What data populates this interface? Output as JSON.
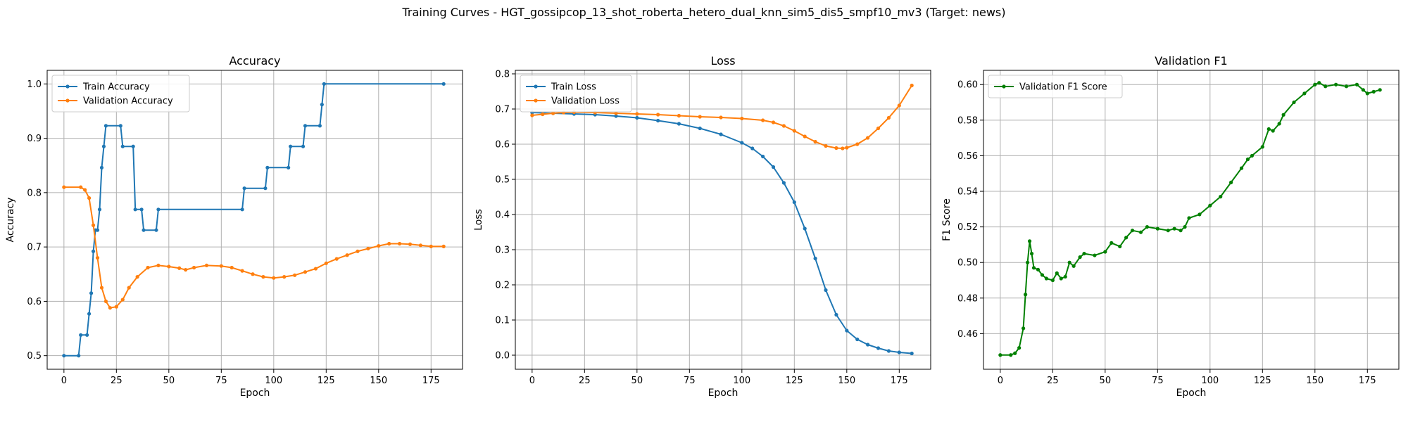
{
  "figure": {
    "suptitle": "Training Curves - HGT_gossipcop_13_shot_roberta_hetero_dual_knn_sim5_dis5_smpf10_mv3 (Target: news)"
  },
  "colors": {
    "train": "#1f77b4",
    "validation": "#ff7f0e",
    "f1": "#008000",
    "grid": "#b0b0b0"
  },
  "chart_data": [
    {
      "type": "line",
      "title": "Accuracy",
      "xlabel": "Epoch",
      "ylabel": "Accuracy",
      "xlim": [
        -8,
        190
      ],
      "ylim": [
        0.475,
        1.025
      ],
      "xticks": [
        0,
        25,
        50,
        75,
        100,
        125,
        150,
        175
      ],
      "yticks": [
        0.5,
        0.6,
        0.7,
        0.8,
        0.9,
        1.0
      ],
      "ytick_labels": [
        "0.5",
        "0.6",
        "0.7",
        "0.8",
        "0.9",
        "1.0"
      ],
      "grid": true,
      "legend": "upper-left",
      "series": [
        {
          "name": "Train Accuracy",
          "color": "#1f77b4",
          "points": [
            [
              0,
              0.5
            ],
            [
              7,
              0.5
            ],
            [
              8,
              0.538
            ],
            [
              11,
              0.538
            ],
            [
              12,
              0.577
            ],
            [
              13,
              0.615
            ],
            [
              14,
              0.692
            ],
            [
              15,
              0.731
            ],
            [
              16,
              0.731
            ],
            [
              17,
              0.769
            ],
            [
              18,
              0.846
            ],
            [
              19,
              0.885
            ],
            [
              20,
              0.923
            ],
            [
              27,
              0.923
            ],
            [
              28,
              0.885
            ],
            [
              33,
              0.885
            ],
            [
              34,
              0.769
            ],
            [
              37,
              0.769
            ],
            [
              38,
              0.731
            ],
            [
              44,
              0.731
            ],
            [
              45,
              0.769
            ],
            [
              85,
              0.769
            ],
            [
              86,
              0.808
            ],
            [
              96,
              0.808
            ],
            [
              97,
              0.846
            ],
            [
              107,
              0.846
            ],
            [
              108,
              0.885
            ],
            [
              114,
              0.885
            ],
            [
              115,
              0.923
            ],
            [
              122,
              0.923
            ],
            [
              123,
              0.962
            ],
            [
              124,
              1.0
            ],
            [
              181,
              1.0
            ]
          ]
        },
        {
          "name": "Validation Accuracy",
          "color": "#ff7f0e",
          "points": [
            [
              0,
              0.81
            ],
            [
              8,
              0.81
            ],
            [
              10,
              0.805
            ],
            [
              12,
              0.79
            ],
            [
              14,
              0.74
            ],
            [
              16,
              0.68
            ],
            [
              18,
              0.625
            ],
            [
              20,
              0.6
            ],
            [
              22,
              0.588
            ],
            [
              25,
              0.59
            ],
            [
              28,
              0.603
            ],
            [
              31,
              0.625
            ],
            [
              35,
              0.645
            ],
            [
              40,
              0.662
            ],
            [
              45,
              0.666
            ],
            [
              50,
              0.664
            ],
            [
              55,
              0.661
            ],
            [
              58,
              0.658
            ],
            [
              62,
              0.662
            ],
            [
              68,
              0.666
            ],
            [
              75,
              0.665
            ],
            [
              80,
              0.662
            ],
            [
              85,
              0.656
            ],
            [
              90,
              0.65
            ],
            [
              95,
              0.645
            ],
            [
              100,
              0.643
            ],
            [
              105,
              0.645
            ],
            [
              110,
              0.648
            ],
            [
              115,
              0.654
            ],
            [
              120,
              0.66
            ],
            [
              125,
              0.67
            ],
            [
              130,
              0.678
            ],
            [
              135,
              0.685
            ],
            [
              140,
              0.692
            ],
            [
              145,
              0.697
            ],
            [
              150,
              0.702
            ],
            [
              155,
              0.706
            ],
            [
              160,
              0.706
            ],
            [
              165,
              0.705
            ],
            [
              170,
              0.703
            ],
            [
              175,
              0.701
            ],
            [
              181,
              0.701
            ]
          ]
        }
      ]
    },
    {
      "type": "line",
      "title": "Loss",
      "xlabel": "Epoch",
      "ylabel": "Loss",
      "xlim": [
        -8,
        190
      ],
      "ylim": [
        -0.04,
        0.81
      ],
      "xticks": [
        0,
        25,
        50,
        75,
        100,
        125,
        150,
        175
      ],
      "yticks": [
        0.0,
        0.1,
        0.2,
        0.3,
        0.4,
        0.5,
        0.6,
        0.7,
        0.8
      ],
      "ytick_labels": [
        "0.0",
        "0.1",
        "0.2",
        "0.3",
        "0.4",
        "0.5",
        "0.6",
        "0.7",
        "0.8"
      ],
      "grid": true,
      "legend": "upper-left",
      "series": [
        {
          "name": "Train Loss",
          "color": "#1f77b4",
          "points": [
            [
              0,
              0.69
            ],
            [
              10,
              0.688
            ],
            [
              20,
              0.686
            ],
            [
              30,
              0.684
            ],
            [
              40,
              0.68
            ],
            [
              50,
              0.675
            ],
            [
              60,
              0.667
            ],
            [
              70,
              0.658
            ],
            [
              80,
              0.645
            ],
            [
              90,
              0.628
            ],
            [
              100,
              0.604
            ],
            [
              105,
              0.588
            ],
            [
              110,
              0.565
            ],
            [
              115,
              0.535
            ],
            [
              120,
              0.49
            ],
            [
              125,
              0.435
            ],
            [
              130,
              0.36
            ],
            [
              135,
              0.275
            ],
            [
              140,
              0.185
            ],
            [
              145,
              0.115
            ],
            [
              150,
              0.07
            ],
            [
              155,
              0.045
            ],
            [
              160,
              0.03
            ],
            [
              165,
              0.02
            ],
            [
              170,
              0.012
            ],
            [
              175,
              0.008
            ],
            [
              181,
              0.005
            ]
          ]
        },
        {
          "name": "Validation Loss",
          "color": "#ff7f0e",
          "points": [
            [
              0,
              0.682
            ],
            [
              5,
              0.685
            ],
            [
              10,
              0.688
            ],
            [
              15,
              0.69
            ],
            [
              20,
              0.691
            ],
            [
              30,
              0.69
            ],
            [
              40,
              0.688
            ],
            [
              50,
              0.686
            ],
            [
              60,
              0.684
            ],
            [
              70,
              0.681
            ],
            [
              80,
              0.678
            ],
            [
              90,
              0.676
            ],
            [
              100,
              0.673
            ],
            [
              110,
              0.668
            ],
            [
              115,
              0.662
            ],
            [
              120,
              0.652
            ],
            [
              125,
              0.638
            ],
            [
              130,
              0.622
            ],
            [
              135,
              0.607
            ],
            [
              140,
              0.595
            ],
            [
              145,
              0.589
            ],
            [
              148,
              0.588
            ],
            [
              150,
              0.59
            ],
            [
              155,
              0.6
            ],
            [
              160,
              0.618
            ],
            [
              165,
              0.645
            ],
            [
              170,
              0.675
            ],
            [
              175,
              0.71
            ],
            [
              181,
              0.767
            ]
          ]
        }
      ]
    },
    {
      "type": "line",
      "title": "Validation F1",
      "xlabel": "Epoch",
      "ylabel": "F1 Score",
      "xlim": [
        -8,
        190
      ],
      "ylim": [
        0.44,
        0.608
      ],
      "xticks": [
        0,
        25,
        50,
        75,
        100,
        125,
        150,
        175
      ],
      "yticks": [
        0.46,
        0.48,
        0.5,
        0.52,
        0.54,
        0.56,
        0.58,
        0.6
      ],
      "ytick_labels": [
        "0.46",
        "0.48",
        "0.50",
        "0.52",
        "0.54",
        "0.56",
        "0.58",
        "0.60"
      ],
      "grid": true,
      "legend": "upper-left",
      "series": [
        {
          "name": "Validation F1 Score",
          "color": "#008000",
          "points": [
            [
              0,
              0.448
            ],
            [
              5,
              0.448
            ],
            [
              7,
              0.449
            ],
            [
              9,
              0.452
            ],
            [
              11,
              0.463
            ],
            [
              12,
              0.482
            ],
            [
              13,
              0.5
            ],
            [
              14,
              0.512
            ],
            [
              15,
              0.505
            ],
            [
              16,
              0.497
            ],
            [
              18,
              0.496
            ],
            [
              20,
              0.493
            ],
            [
              22,
              0.491
            ],
            [
              25,
              0.49
            ],
            [
              27,
              0.494
            ],
            [
              29,
              0.491
            ],
            [
              31,
              0.492
            ],
            [
              33,
              0.5
            ],
            [
              35,
              0.498
            ],
            [
              38,
              0.503
            ],
            [
              40,
              0.505
            ],
            [
              45,
              0.504
            ],
            [
              50,
              0.506
            ],
            [
              53,
              0.511
            ],
            [
              57,
              0.509
            ],
            [
              60,
              0.514
            ],
            [
              63,
              0.518
            ],
            [
              67,
              0.517
            ],
            [
              70,
              0.52
            ],
            [
              75,
              0.519
            ],
            [
              80,
              0.518
            ],
            [
              83,
              0.519
            ],
            [
              86,
              0.518
            ],
            [
              88,
              0.52
            ],
            [
              90,
              0.525
            ],
            [
              95,
              0.527
            ],
            [
              100,
              0.532
            ],
            [
              105,
              0.537
            ],
            [
              110,
              0.545
            ],
            [
              115,
              0.553
            ],
            [
              118,
              0.558
            ],
            [
              120,
              0.56
            ],
            [
              125,
              0.565
            ],
            [
              128,
              0.575
            ],
            [
              130,
              0.574
            ],
            [
              133,
              0.578
            ],
            [
              135,
              0.583
            ],
            [
              140,
              0.59
            ],
            [
              145,
              0.595
            ],
            [
              150,
              0.6
            ],
            [
              152,
              0.601
            ],
            [
              155,
              0.599
            ],
            [
              160,
              0.6
            ],
            [
              165,
              0.599
            ],
            [
              170,
              0.6
            ],
            [
              173,
              0.597
            ],
            [
              175,
              0.595
            ],
            [
              178,
              0.596
            ],
            [
              181,
              0.597
            ]
          ]
        }
      ]
    }
  ]
}
